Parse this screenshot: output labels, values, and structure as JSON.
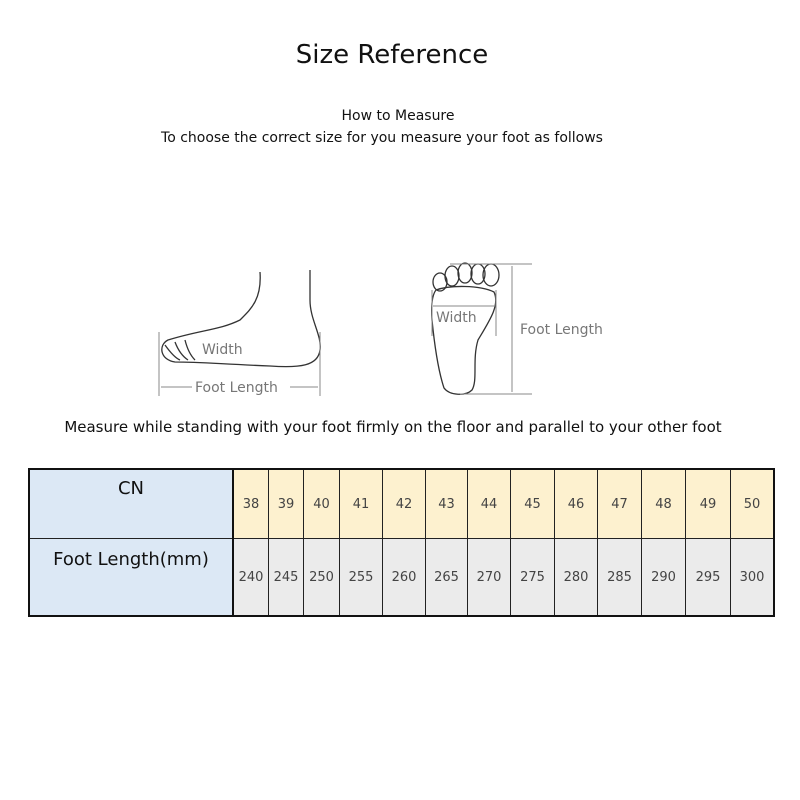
{
  "title": "Size Reference",
  "subtitle": "How to Measure",
  "instruction": "To choose the correct size for you measure your foot as follows",
  "illustration": {
    "side_width_label": "Width",
    "side_length_label": "Foot Length",
    "sole_width_label": "Width",
    "sole_length_label": "Foot Length"
  },
  "note": "Measure while standing with your foot firmly on the floor and parallel to your other foot",
  "table": {
    "row_headers": [
      "CN",
      "Foot Length(mm)"
    ],
    "cn": [
      "38",
      "39",
      "40",
      "41",
      "42",
      "43",
      "44",
      "45",
      "46",
      "47",
      "48",
      "49",
      "50"
    ],
    "foot_length": [
      "240",
      "245",
      "250",
      "255",
      "260",
      "265",
      "270",
      "275",
      "280",
      "285",
      "290",
      "295",
      "300"
    ]
  }
}
